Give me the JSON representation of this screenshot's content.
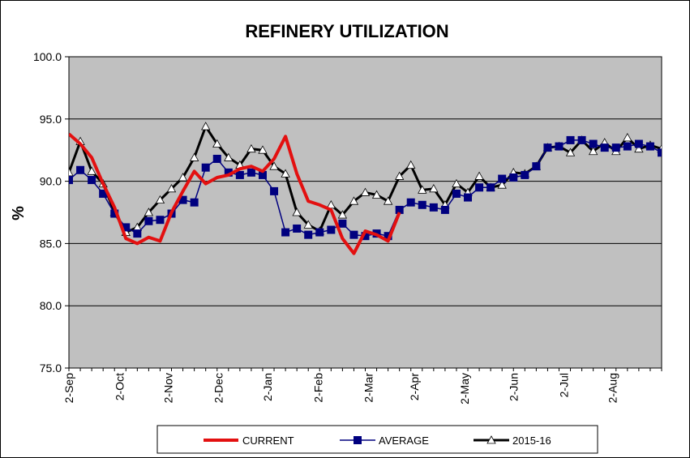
{
  "chart_data": {
    "type": "line",
    "title": "REFINERY UTILIZATION",
    "ylabel": "%",
    "xlabel": "",
    "ylim": [
      75.0,
      100.0
    ],
    "yticks": [
      75.0,
      80.0,
      85.0,
      90.0,
      95.0,
      100.0
    ],
    "ytick_labels": [
      "75.0",
      "80.0",
      "85.0",
      "90.0",
      "95.0",
      "100.0"
    ],
    "x_domain": [
      0,
      52
    ],
    "xtick_positions": [
      0,
      4.43,
      8.71,
      13.14,
      17.43,
      21.86,
      26.29,
      30.29,
      34.71,
      39.0,
      43.43,
      47.71
    ],
    "xtick_labels": [
      "2-Sep",
      "2-Oct",
      "2-Nov",
      "2-Dec",
      "2-Jan",
      "2-Feb",
      "2-Mar",
      "2-Apr",
      "2-May",
      "2-Jun",
      "2-Jul",
      "2-Aug"
    ],
    "grid": "horizontal",
    "plot_background": "#c0c0c0",
    "legend_position": "bottom",
    "series": [
      {
        "name": "CURRENT",
        "color": "#e31010",
        "marker": "none",
        "x": [
          0,
          1,
          2,
          3,
          4,
          5,
          6,
          7,
          8,
          9,
          10,
          11,
          12,
          13,
          14,
          15,
          16,
          17,
          18,
          19,
          20,
          21,
          22,
          23,
          24,
          25,
          26,
          27,
          28,
          29
        ],
        "y": [
          93.8,
          93.0,
          91.9,
          89.8,
          87.9,
          85.4,
          85.0,
          85.5,
          85.2,
          87.5,
          89.2,
          90.8,
          89.8,
          90.3,
          90.5,
          91.0,
          91.2,
          90.8,
          91.8,
          93.6,
          90.6,
          88.4,
          88.1,
          87.7,
          85.4,
          84.2,
          86.0,
          85.7,
          85.2,
          87.5
        ]
      },
      {
        "name": "AVERAGE",
        "color": "#00007f",
        "marker": "square",
        "x": [
          0,
          1,
          2,
          3,
          4,
          5,
          6,
          7,
          8,
          9,
          10,
          11,
          12,
          13,
          14,
          15,
          16,
          17,
          18,
          19,
          20,
          21,
          22,
          23,
          24,
          25,
          26,
          27,
          28,
          29,
          30,
          31,
          32,
          33,
          34,
          35,
          36,
          37,
          38,
          39,
          40,
          41,
          42,
          43,
          44,
          45,
          46,
          47,
          48,
          49,
          50,
          51,
          52
        ],
        "y": [
          90.1,
          90.9,
          90.1,
          89.0,
          87.4,
          86.3,
          85.8,
          86.8,
          86.9,
          87.4,
          88.5,
          88.3,
          91.1,
          91.8,
          90.7,
          90.5,
          90.7,
          90.5,
          89.2,
          85.9,
          86.2,
          85.7,
          85.9,
          86.1,
          86.6,
          85.7,
          85.6,
          85.8,
          85.6,
          87.7,
          88.3,
          88.1,
          87.9,
          87.7,
          89.0,
          88.7,
          89.5,
          89.5,
          90.2,
          90.3,
          90.5,
          91.2,
          92.7,
          92.8,
          93.3,
          93.3,
          93.0,
          92.7,
          92.7,
          92.8,
          93.0,
          92.8,
          92.3
        ]
      },
      {
        "name": "2015-16",
        "color": "#000000",
        "marker": "triangle",
        "x": [
          0,
          1,
          2,
          3,
          4,
          5,
          6,
          7,
          8,
          9,
          10,
          11,
          12,
          13,
          14,
          15,
          16,
          17,
          18,
          19,
          20,
          21,
          22,
          23,
          24,
          25,
          26,
          27,
          28,
          29,
          30,
          31,
          32,
          33,
          34,
          35,
          36,
          37,
          38,
          39,
          40,
          41,
          42,
          43,
          44,
          45,
          46,
          47,
          48,
          49,
          50,
          51,
          52
        ],
        "y": [
          90.7,
          93.2,
          90.8,
          89.8,
          87.5,
          85.9,
          86.3,
          87.5,
          88.5,
          89.4,
          90.3,
          91.9,
          94.4,
          93.0,
          91.9,
          91.3,
          92.6,
          92.5,
          91.2,
          90.6,
          87.5,
          86.5,
          86.0,
          88.1,
          87.3,
          88.4,
          89.1,
          88.9,
          88.4,
          90.4,
          91.3,
          89.3,
          89.4,
          88.1,
          89.8,
          89.1,
          90.4,
          89.5,
          89.7,
          90.7,
          90.6,
          91.2,
          92.7,
          92.8,
          92.3,
          93.3,
          92.4,
          93.1,
          92.4,
          93.5,
          92.6,
          92.9,
          92.6
        ]
      }
    ]
  }
}
